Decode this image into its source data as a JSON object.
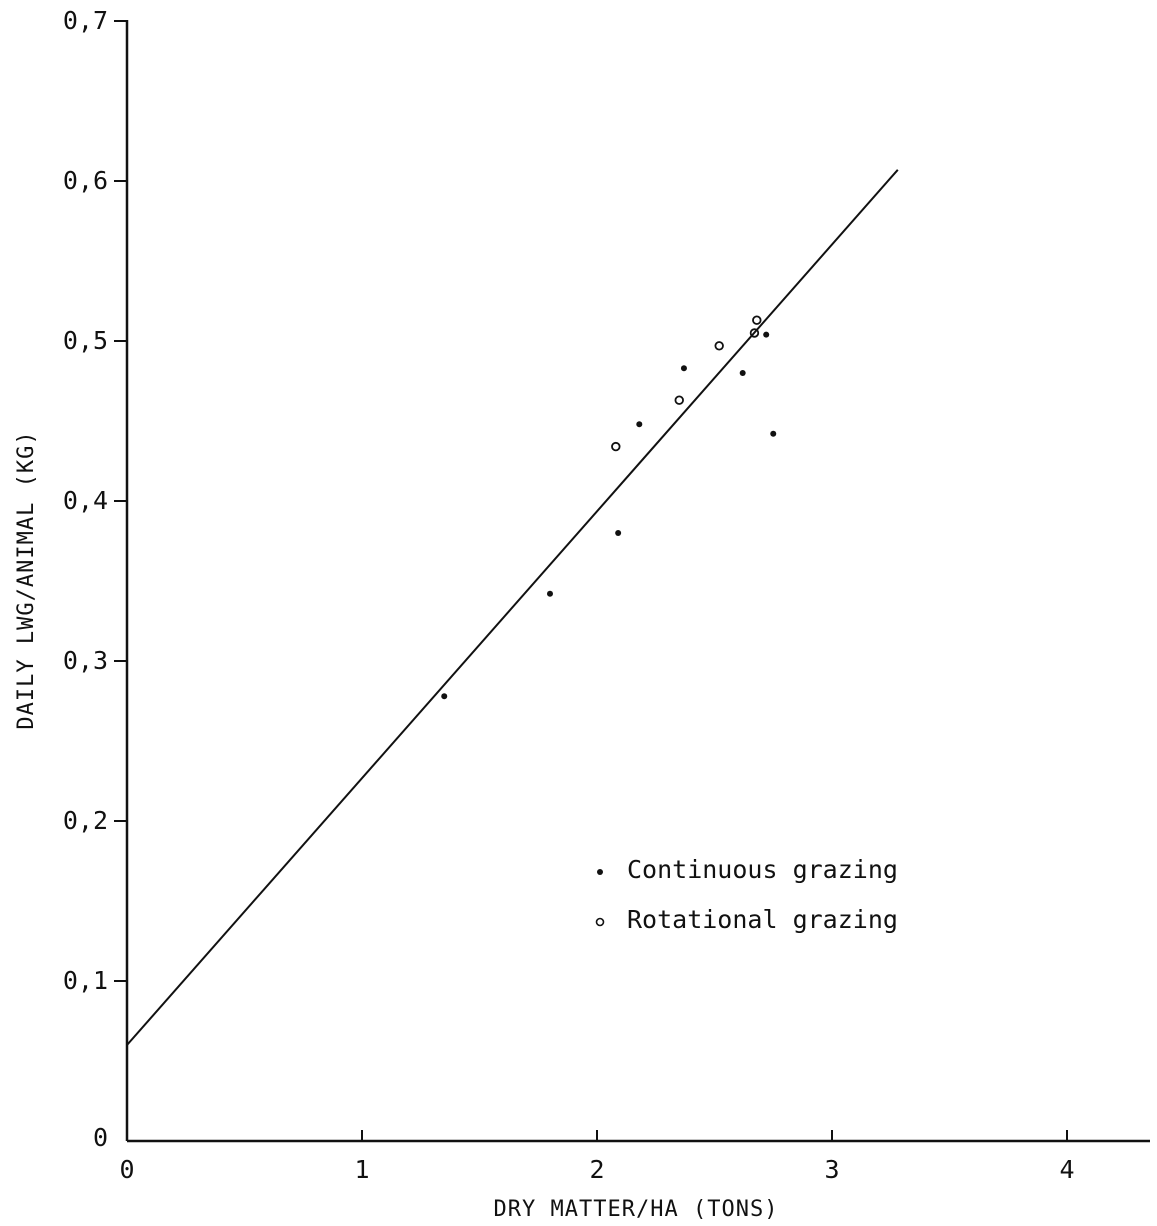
{
  "chart_data": {
    "type": "scatter",
    "title": "",
    "xlabel": "DRY MATTER/HA  (TONS)",
    "ylabel": "DAILY LWG/ANIMAL  (KG)",
    "xlim": [
      0,
      4.3
    ],
    "ylim": [
      0,
      0.7
    ],
    "x_ticks": [
      0,
      1,
      2,
      3,
      4
    ],
    "x_tick_labels": [
      "0",
      "1",
      "2",
      "3",
      "4"
    ],
    "y_ticks": [
      0,
      0.1,
      0.2,
      0.3,
      0.4,
      0.5,
      0.6,
      0.7
    ],
    "y_tick_labels": [
      "0",
      "0,1",
      "0,2",
      "0,3",
      "0,4",
      "0,5",
      "0,6",
      "0,7"
    ],
    "grid": false,
    "legend_position": "lower-right",
    "series": [
      {
        "name": "Continuous grazing",
        "marker": "filled-dot",
        "points": [
          {
            "x": 1.35,
            "y": 0.278
          },
          {
            "x": 1.8,
            "y": 0.342
          },
          {
            "x": 2.09,
            "y": 0.38
          },
          {
            "x": 2.18,
            "y": 0.448
          },
          {
            "x": 2.37,
            "y": 0.483
          },
          {
            "x": 2.62,
            "y": 0.48
          },
          {
            "x": 2.72,
            "y": 0.504
          },
          {
            "x": 2.75,
            "y": 0.442
          }
        ]
      },
      {
        "name": "Rotational grazing",
        "marker": "open-circle",
        "points": [
          {
            "x": 2.08,
            "y": 0.434
          },
          {
            "x": 2.35,
            "y": 0.463
          },
          {
            "x": 2.52,
            "y": 0.497
          },
          {
            "x": 2.67,
            "y": 0.505
          },
          {
            "x": 2.68,
            "y": 0.513
          }
        ]
      }
    ],
    "regression_line": {
      "x": [
        0,
        3.28
      ],
      "y": [
        0.06,
        0.607
      ]
    }
  }
}
